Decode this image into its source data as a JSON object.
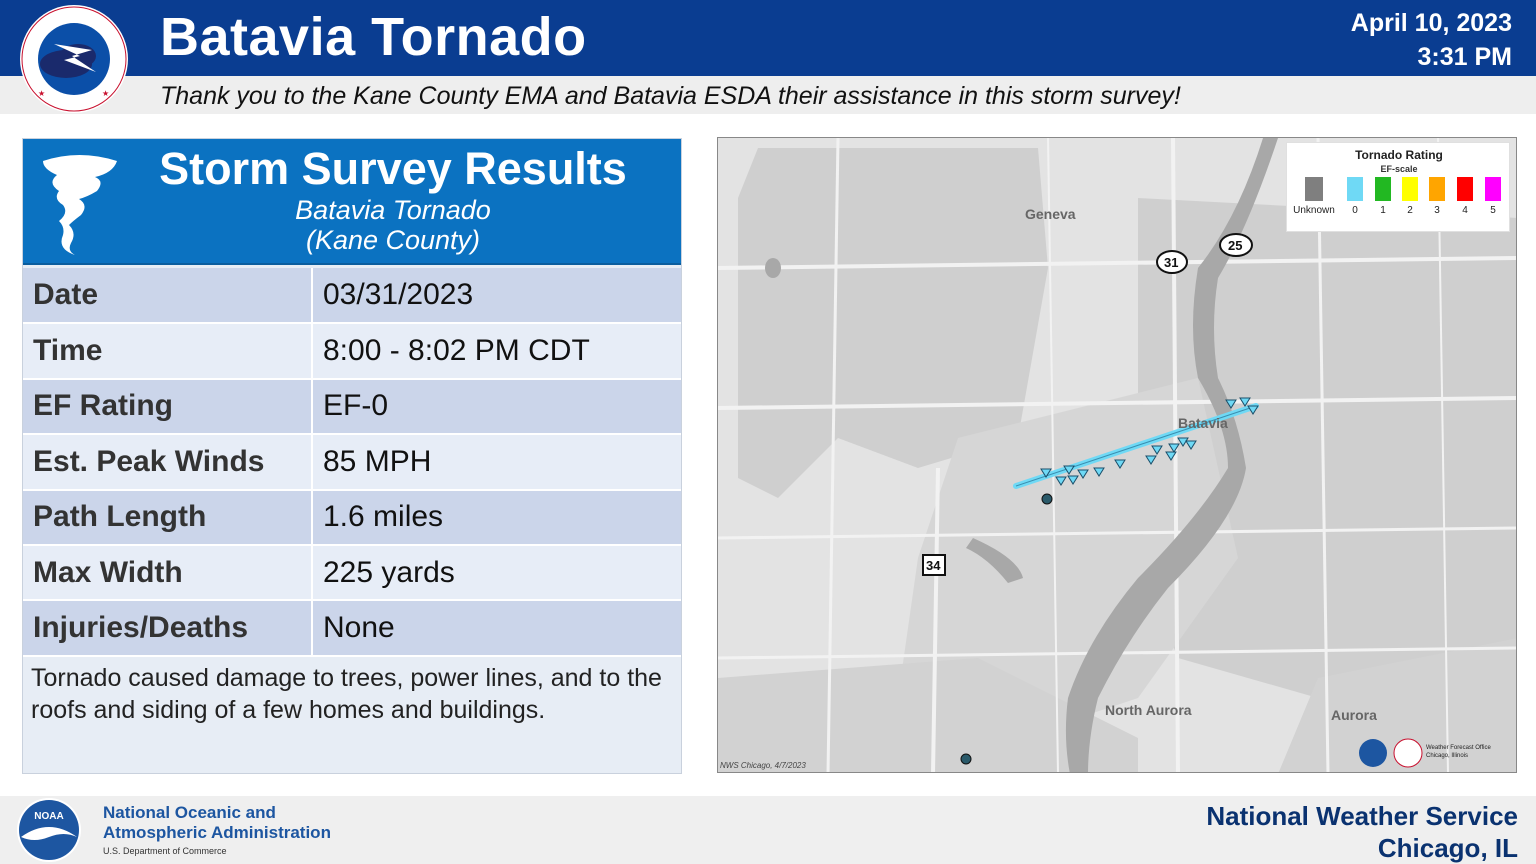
{
  "header": {
    "logo_text": "NATIONAL WEATHER SERVICE",
    "title": "Batavia Tornado",
    "date": "April 10, 2023",
    "time": "3:31 PM",
    "thanks": "Thank you to the Kane County EMA and Batavia ESDA their assistance in this storm survey!"
  },
  "panel": {
    "title": "Storm Survey Results",
    "subtitle1": "Batavia Tornado",
    "subtitle2": "(Kane County)",
    "rows": [
      {
        "label": "Date",
        "value": "03/31/2023"
      },
      {
        "label": "Time",
        "value": "8:00 - 8:02 PM CDT"
      },
      {
        "label": "EF Rating",
        "value": "EF-0"
      },
      {
        "label": "Est. Peak Winds",
        "value": "85 MPH"
      },
      {
        "label": "Path Length",
        "value": "1.6 miles"
      },
      {
        "label": "Max Width",
        "value": "225 yards"
      },
      {
        "label": "Injuries/Deaths",
        "value": "None"
      }
    ],
    "description": "Tornado caused damage to trees, power lines, and to the roofs and siding of a few homes and buildings."
  },
  "map": {
    "places": {
      "geneva": "Geneva",
      "batavia": "Batavia",
      "north_aurora": "North Aurora",
      "aurora": "Aurora"
    },
    "shields": {
      "us31": "31",
      "il25": "25",
      "us34": "34"
    },
    "credit": "NWS Chicago, 4/7/2023",
    "office": "Weather Forecast Office Chicago, Illinois",
    "legend": {
      "title": "Tornado Rating",
      "subtitle": "EF-scale",
      "items": [
        {
          "label": "Unknown",
          "color": "#7f7f7f"
        },
        {
          "label": "0",
          "color": "#6fd9f5"
        },
        {
          "label": "1",
          "color": "#22b822"
        },
        {
          "label": "2",
          "color": "#ffff00"
        },
        {
          "label": "3",
          "color": "#ffa500"
        },
        {
          "label": "4",
          "color": "#ff0000"
        },
        {
          "label": "5",
          "color": "#ff00ff"
        }
      ]
    }
  },
  "footer": {
    "noaa_line1": "National Oceanic and",
    "noaa_line2": "Atmospheric Administration",
    "noaa_dept": "U.S. Department of Commerce",
    "noaa_logo_text": "NOAA",
    "nws_line1": "National Weather Service",
    "nws_line2": "Chicago, IL"
  },
  "colors": {
    "header_blue": "#0a3d91",
    "panel_blue": "#0b72c1",
    "ef0": "#6fd9f5"
  }
}
